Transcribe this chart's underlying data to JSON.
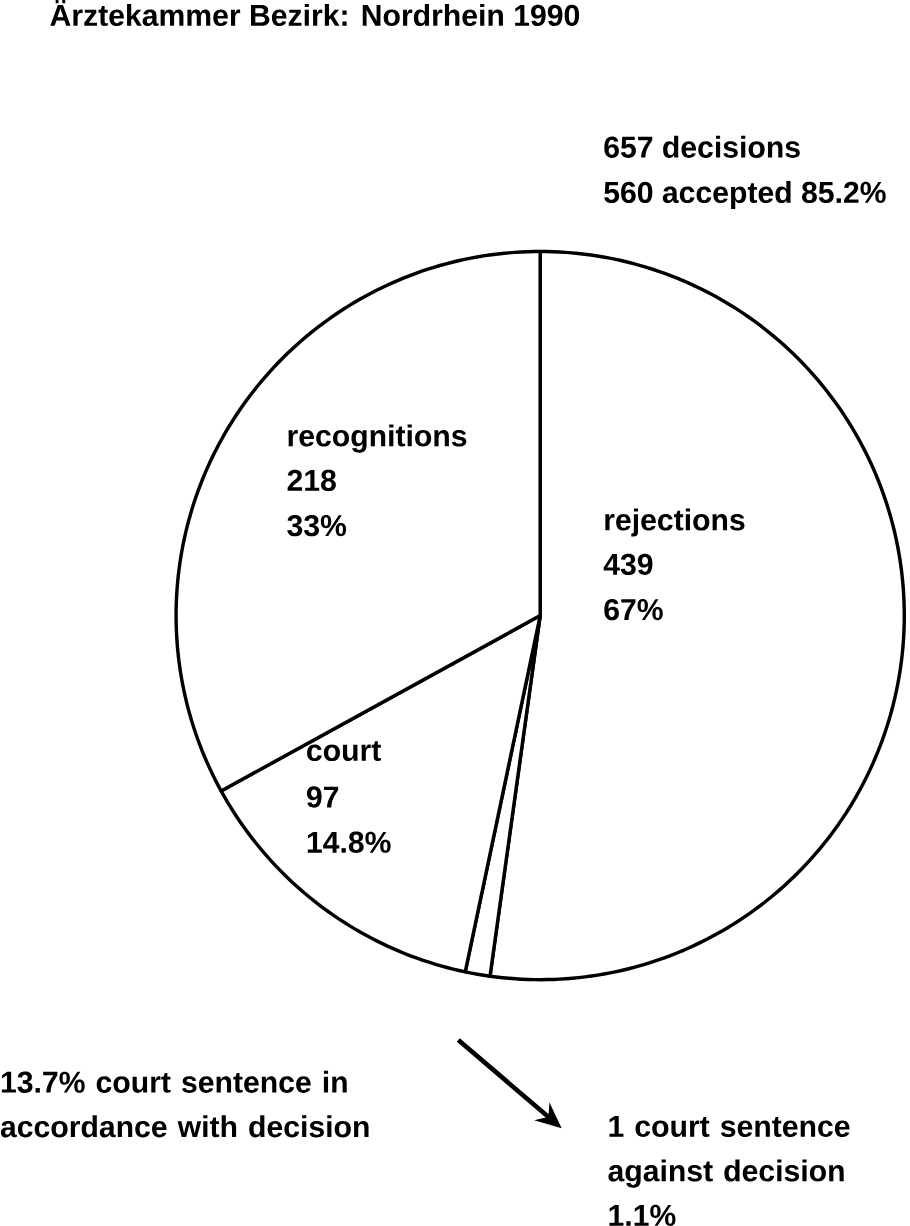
{
  "chart_data": {
    "type": "pie",
    "title": "Ärztekammer Bezirk: Nordrhein 1990",
    "categories": [
      "rejections",
      null,
      "court",
      "recognitions"
    ],
    "values": [
      52.2,
      1.1,
      13.7,
      33
    ],
    "colors": [
      "#ffffff",
      "#ffffff",
      "#ffffff",
      "#ffffff"
    ],
    "annotations": [
      "439",
      "67%",
      "97",
      "14.8%",
      "218",
      "33%",
      "657 decisions",
      "560 accepted 85.2%",
      "13.7% court sentence in accordance with decision",
      "1 court sentence against decision 1.1%"
    ]
  }
}
